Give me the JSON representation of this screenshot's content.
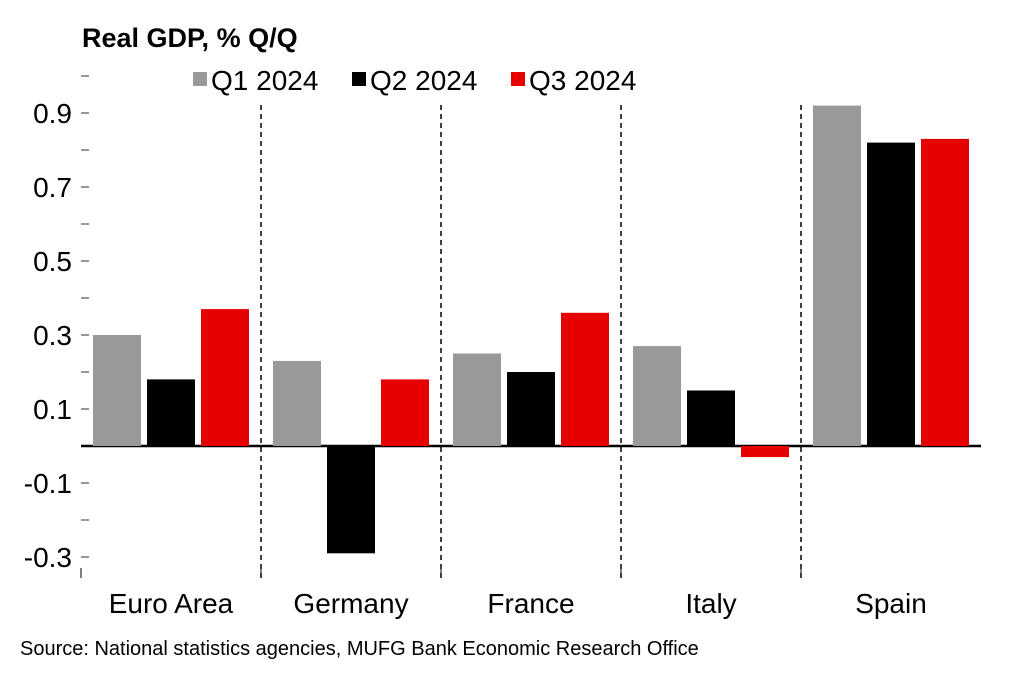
{
  "chart_data": {
    "type": "bar",
    "title": "Real GDP, % Q/Q",
    "xlabel": "",
    "ylabel": "",
    "categories": [
      "Euro Area",
      "Germany",
      "France",
      "Italy",
      "Spain"
    ],
    "series": [
      {
        "name": "Q1 2024",
        "color": "#999999",
        "values": [
          0.3,
          0.23,
          0.25,
          0.27,
          0.92
        ]
      },
      {
        "name": "Q2 2024",
        "color": "#000000",
        "values": [
          0.18,
          -0.29,
          0.2,
          0.15,
          0.82
        ]
      },
      {
        "name": "Q3 2024",
        "color": "#e60000",
        "values": [
          0.37,
          0.18,
          0.36,
          -0.03,
          0.83
        ]
      }
    ],
    "ylim": [
      -0.3,
      1.0
    ],
    "y_tick_labels": [
      "0.9",
      "0.7",
      "0.5",
      "0.3",
      "0.1",
      "-0.1",
      "-0.3"
    ],
    "y_tick_values": [
      0.9,
      0.7,
      0.5,
      0.3,
      0.1,
      -0.1,
      -0.3
    ],
    "y_minor_ticks": [
      1.0,
      0.8,
      0.6,
      0.4,
      0.2,
      0.0,
      -0.2
    ],
    "grid": false,
    "category_separators": "dashed",
    "legend_position": "top",
    "source": "Source: National statistics agencies, MUFG Bank Economic Research Office"
  }
}
